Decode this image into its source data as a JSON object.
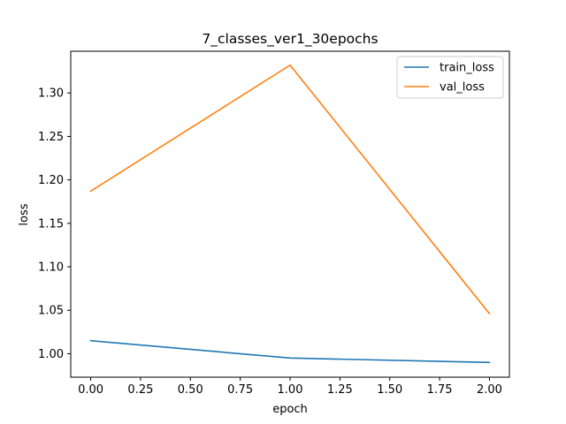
{
  "chart_data": {
    "type": "line",
    "title": "7_classes_ver1_30epochs",
    "xlabel": "epoch",
    "ylabel": "loss",
    "xlim": [
      -0.1,
      2.1
    ],
    "ylim": [
      0.973,
      1.348
    ],
    "xticks": [
      0.0,
      0.25,
      0.5,
      0.75,
      1.0,
      1.25,
      1.5,
      1.75,
      2.0
    ],
    "xtick_labels": [
      "0.00",
      "0.25",
      "0.50",
      "0.75",
      "1.00",
      "1.25",
      "1.50",
      "1.75",
      "2.00"
    ],
    "yticks": [
      1.0,
      1.05,
      1.1,
      1.15,
      1.2,
      1.25,
      1.3
    ],
    "ytick_labels": [
      "1.00",
      "1.05",
      "1.10",
      "1.15",
      "1.20",
      "1.25",
      "1.30"
    ],
    "grid": false,
    "legend_position": "top-right",
    "x": [
      0,
      1,
      2
    ],
    "series": [
      {
        "name": "train_loss",
        "color": "#1f77b4",
        "values": [
          1.015,
          0.995,
          0.99
        ]
      },
      {
        "name": "val_loss",
        "color": "#ff7f0e",
        "values": [
          1.187,
          1.332,
          1.046
        ]
      }
    ]
  }
}
